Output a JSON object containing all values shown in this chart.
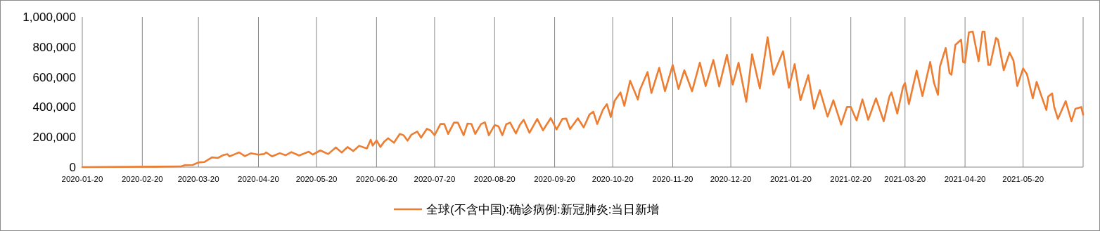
{
  "chart_data": {
    "type": "line",
    "x": [
      "2020-01-20",
      "2020-02-28",
      "2020-03-11",
      "2020-03-13",
      "2020-03-17",
      "2020-03-20",
      "2020-03-23",
      "2020-03-27",
      "2020-03-30",
      "2020-04-02",
      "2020-04-04",
      "2020-04-05",
      "2020-04-08",
      "2020-04-10",
      "2020-04-13",
      "2020-04-16",
      "2020-04-20",
      "2020-04-23",
      "2020-04-24",
      "2020-04-27",
      "2020-05-01",
      "2020-05-04",
      "2020-05-07",
      "2020-05-11",
      "2020-05-16",
      "2020-05-18",
      "2020-05-22",
      "2020-05-26",
      "2020-05-30",
      "2020-06-02",
      "2020-06-05",
      "2020-06-08",
      "2020-06-11",
      "2020-06-15",
      "2020-06-17",
      "2020-06-18",
      "2020-06-20",
      "2020-06-22",
      "2020-06-24",
      "2020-06-26",
      "2020-06-29",
      "2020-07-02",
      "2020-07-04",
      "2020-07-06",
      "2020-07-08",
      "2020-07-11",
      "2020-07-13",
      "2020-07-16",
      "2020-07-18",
      "2020-07-20",
      "2020-07-23",
      "2020-07-25",
      "2020-07-27",
      "2020-07-30",
      "2020-08-01",
      "2020-08-04",
      "2020-08-06",
      "2020-08-08",
      "2020-08-10",
      "2020-08-13",
      "2020-08-15",
      "2020-08-17",
      "2020-08-20",
      "2020-08-22",
      "2020-08-24",
      "2020-08-26",
      "2020-08-28",
      "2020-08-31",
      "2020-09-02",
      "2020-09-04",
      "2020-09-07",
      "2020-09-11",
      "2020-09-14",
      "2020-09-18",
      "2020-09-21",
      "2020-09-24",
      "2020-09-26",
      "2020-09-28",
      "2020-10-02",
      "2020-10-05",
      "2020-10-08",
      "2020-10-10",
      "2020-10-12",
      "2020-10-15",
      "2020-10-17",
      "2020-10-19",
      "2020-10-21",
      "2020-10-24",
      "2020-10-26",
      "2020-10-29",
      "2020-11-02",
      "2020-11-03",
      "2020-11-07",
      "2020-11-09",
      "2020-11-13",
      "2020-11-16",
      "2020-11-20",
      "2020-11-23",
      "2020-11-26",
      "2020-11-30",
      "2020-12-04",
      "2020-12-07",
      "2020-12-11",
      "2020-12-14",
      "2020-12-18",
      "2020-12-21",
      "2020-12-24",
      "2020-12-28",
      "2020-12-31",
      "2021-01-04",
      "2021-01-08",
      "2021-01-11",
      "2021-01-16",
      "2021-01-19",
      "2021-01-22",
      "2021-01-25",
      "2021-01-29",
      "2021-02-01",
      "2021-02-04",
      "2021-02-08",
      "2021-02-11",
      "2021-02-15",
      "2021-02-18",
      "2021-02-20",
      "2021-02-23",
      "2021-02-26",
      "2021-03-01",
      "2021-03-05",
      "2021-03-09",
      "2021-03-12",
      "2021-03-13",
      "2021-03-16",
      "2021-03-19",
      "2021-03-20",
      "2021-03-22",
      "2021-03-26",
      "2021-03-29",
      "2021-04-02",
      "2021-04-04",
      "2021-04-06",
      "2021-04-07",
      "2021-04-10",
      "2021-04-12",
      "2021-04-13",
      "2021-04-15",
      "2021-04-18",
      "2021-04-19",
      "2021-04-20",
      "2021-04-22",
      "2021-04-24",
      "2021-04-27",
      "2021-04-29",
      "2021-04-30",
      "2021-05-02",
      "2021-05-03",
      "2021-05-06",
      "2021-05-07",
      "2021-05-10",
      "2021-05-13",
      "2021-05-15",
      "2021-05-17",
      "2021-05-20",
      "2021-05-22",
      "2021-05-25",
      "2021-05-27",
      "2021-05-29",
      "2021-06-01",
      "2021-06-02",
      "2021-06-04",
      "2021-06-05",
      "2021-06-07",
      "2021-06-11",
      "2021-06-14",
      "2021-06-16",
      "2021-06-19",
      "2021-06-20"
    ],
    "series": [
      {
        "name": "全球(不含中国):确诊病例:新冠肺炎:当日新增",
        "color": "#ed7d31",
        "values": [
          0,
          3000,
          5000,
          12600,
          14000,
          31000,
          33600,
          65000,
          60700,
          81000,
          86000,
          71500,
          87000,
          98000,
          73000,
          92000,
          83000,
          87000,
          98000,
          71500,
          93000,
          79000,
          100000,
          77000,
          103000,
          83000,
          111000,
          87000,
          131000,
          97000,
          134000,
          107000,
          142000,
          124000,
          182000,
          143000,
          178000,
          134000,
          170000,
          192000,
          162000,
          221000,
          212000,
          176000,
          216000,
          237000,
          196000,
          255000,
          243000,
          212000,
          287000,
          287000,
          221000,
          296000,
          296000,
          212000,
          290000,
          287000,
          221000,
          287000,
          298000,
          212000,
          280000,
          271000,
          212000,
          285000,
          296000,
          224000,
          280000,
          315000,
          228000,
          321000,
          245000,
          326000,
          251000,
          321000,
          323000,
          253000,
          325000,
          264000,
          350000,
          369000,
          287000,
          383000,
          419000,
          333000,
          442000,
          497000,
          408000,
          575000,
          450000,
          512000,
          633000,
          493000,
          661000,
          505000,
          680000,
          520000,
          645000,
          505000,
          695000,
          539000,
          713000,
          536000,
          747000,
          549000,
          695000,
          435000,
          751000,
          523000,
          864000,
          615000,
          771000,
          528000,
          685000,
          445000,
          612000,
          388000,
          512000,
          336000,
          445000,
          283000,
          400000,
          400000,
          311000,
          451000,
          315000,
          458000,
          305000,
          473000,
          497000,
          357000,
          536000,
          560000,
          419000,
          642000,
          473000,
          700000,
          560000,
          481000,
          668000,
          793000,
          626000,
          615000,
          813000,
          848000,
          700000,
          695000,
          897000,
          902000,
          705000,
          902000,
          902000,
          680000,
          680000,
          860000,
          848000,
          645000,
          762000,
          710000,
          539000,
          657000,
          618000,
          458000,
          567000,
          490000,
          380000,
          470000,
          490000,
          404000,
          321000,
          439000,
          305000,
          388000,
          400000,
          349000
        ]
      }
    ],
    "xlim": [
      "2020-01-20",
      "2021-06-20"
    ],
    "xticks": [
      {
        "value": "2020-01-20",
        "label": "2020-01-20"
      },
      {
        "value": "2020-02-20",
        "label": "2020-02-20"
      },
      {
        "value": "2020-03-20",
        "label": "2020-03-20"
      },
      {
        "value": "2020-04-20",
        "label": "2020-04-20"
      },
      {
        "value": "2020-05-20",
        "label": "2020-05-20"
      },
      {
        "value": "2020-06-20",
        "label": "2020-06-20"
      },
      {
        "value": "2020-07-20",
        "label": "2020-07-20"
      },
      {
        "value": "2020-08-20",
        "label": "2020-08-20"
      },
      {
        "value": "2020-09-20",
        "label": "2020-09-20"
      },
      {
        "value": "2020-10-20",
        "label": "2020-10-20"
      },
      {
        "value": "2020-11-20",
        "label": "2020-11-20"
      },
      {
        "value": "2020-12-20",
        "label": "2020-12-20"
      },
      {
        "value": "2021-01-20",
        "label": "2021-01-20"
      },
      {
        "value": "2021-02-20",
        "label": "2021-02-20"
      },
      {
        "value": "2021-03-20",
        "label": "2021-03-20"
      },
      {
        "value": "2021-04-20",
        "label": "2021-04-20"
      },
      {
        "value": "2021-05-20",
        "label": "2021-05-20"
      }
    ],
    "ylim": [
      0,
      1000000
    ],
    "yticks": [
      {
        "value": 0,
        "label": "0"
      },
      {
        "value": 200000,
        "label": "200,000"
      },
      {
        "value": 400000,
        "label": "400,000"
      },
      {
        "value": 600000,
        "label": "600,000"
      },
      {
        "value": 800000,
        "label": "800,000"
      },
      {
        "value": 1000000,
        "label": "1,000,000"
      }
    ],
    "grid": "x",
    "legend": "bottom",
    "marker": "none",
    "line_style": "solid"
  }
}
